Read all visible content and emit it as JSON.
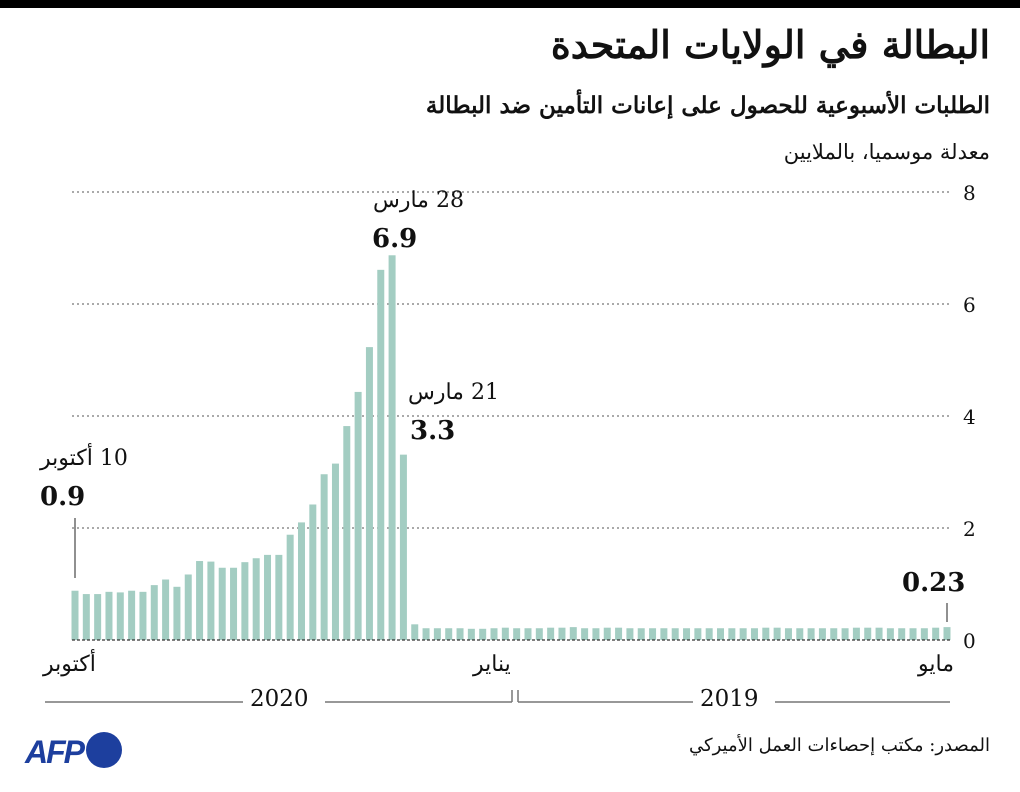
{
  "header": {
    "title": "البطالة في الولايات المتحدة",
    "subtitle": "الطلبات الأسبوعية للحصول على إعانات التأمين ضد البطالة",
    "unit": "معدلة موسميا، بالملايين"
  },
  "footer": {
    "source": "المصدر: مكتب إحصاءات العمل الأميركي",
    "logo": "AFP"
  },
  "colors": {
    "bar": "#a3cdc2",
    "logo": "#1d3f9e"
  },
  "chart_data": {
    "type": "bar",
    "title": "الطلبات الأسبوعية للحصول على إعانات التأمين ضد البطالة",
    "ylabel": "معدلة موسميا، بالملايين",
    "order": "newest-first (left to right: Oct 2020 to May 2019)",
    "ylim": [
      0,
      8
    ],
    "yticks": [
      "0",
      "2",
      "4",
      "6",
      "8"
    ],
    "grid": true,
    "values": [
      0.88,
      0.82,
      0.82,
      0.86,
      0.85,
      0.88,
      0.86,
      0.98,
      1.08,
      0.95,
      1.17,
      1.41,
      1.4,
      1.29,
      1.29,
      1.39,
      1.46,
      1.52,
      1.52,
      1.88,
      2.1,
      2.42,
      2.96,
      3.15,
      3.82,
      4.43,
      5.23,
      6.61,
      6.87,
      3.31,
      0.28,
      0.21,
      0.21,
      0.21,
      0.21,
      0.2,
      0.2,
      0.21,
      0.22,
      0.21,
      0.21,
      0.21,
      0.22,
      0.22,
      0.23,
      0.21,
      0.21,
      0.22,
      0.22,
      0.21,
      0.21,
      0.21,
      0.21,
      0.21,
      0.21,
      0.21,
      0.21,
      0.21,
      0.21,
      0.21,
      0.21,
      0.22,
      0.22,
      0.21,
      0.21,
      0.21,
      0.21,
      0.21,
      0.21,
      0.22,
      0.22,
      0.22,
      0.21,
      0.21,
      0.21,
      0.21,
      0.22,
      0.23
    ],
    "x_month_labels": [
      "أكتوبر",
      "يناير",
      "مايو"
    ],
    "x_year_labels": [
      "2020",
      "2019"
    ],
    "annotations": [
      {
        "date": "10 أكتوبر",
        "value": "0.9"
      },
      {
        "date": "28 مارس",
        "value": "6.9"
      },
      {
        "date": "21 مارس",
        "value": "3.3"
      },
      {
        "date": "",
        "value": "0.23"
      }
    ]
  }
}
